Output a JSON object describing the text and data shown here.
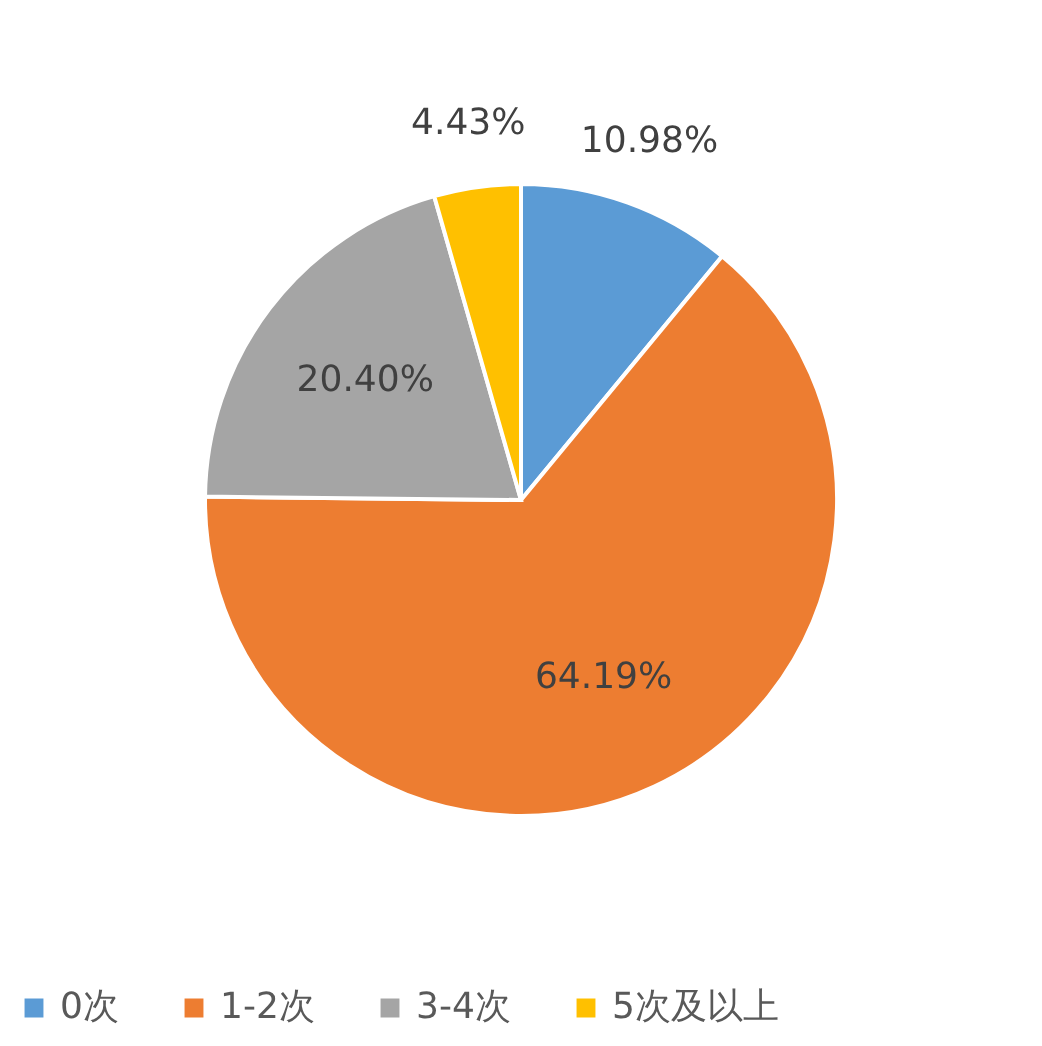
{
  "chart_data": {
    "type": "pie",
    "categories": [
      "0次",
      "1-2次",
      "3-4次",
      "5次及以上"
    ],
    "values": [
      10.98,
      64.19,
      20.4,
      4.43
    ],
    "value_labels": [
      "10.98%",
      "64.19%",
      "20.40%",
      "4.43%"
    ],
    "colors": [
      "#5b9bd5",
      "#ed7d31",
      "#a5a5a5",
      "#ffc000"
    ],
    "legend": "bottom"
  }
}
